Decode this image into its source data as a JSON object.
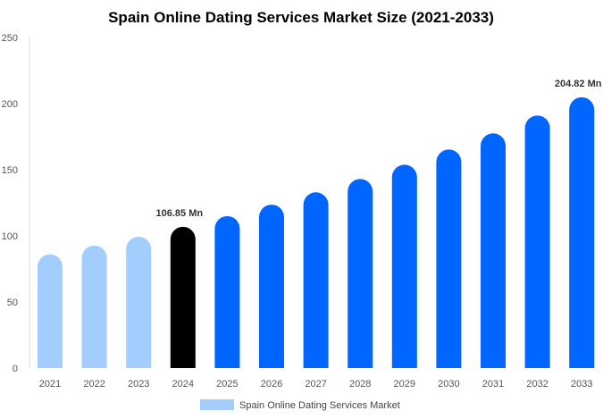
{
  "chart_data": {
    "type": "bar",
    "title": "Spain Online Dating Services Market Size (2021-2033)",
    "xlabel": "",
    "ylabel": "",
    "categories": [
      "2021",
      "2022",
      "2023",
      "2024",
      "2025",
      "2026",
      "2027",
      "2028",
      "2029",
      "2030",
      "2031",
      "2032",
      "2033"
    ],
    "series": [
      {
        "name": "Spain Online Dating Services Market",
        "values": [
          86,
          92.6,
          99.3,
          106.85,
          114.9,
          123.6,
          132.9,
          143,
          153.8,
          165.3,
          177.5,
          191,
          204.82
        ]
      }
    ],
    "ylim": [
      0,
      250
    ],
    "yticks": [
      0,
      50,
      100,
      150,
      200,
      250
    ],
    "data_labels": [
      {
        "category": "2024",
        "text": "106.85 Mn"
      },
      {
        "category": "2033",
        "text": "204.82 Mn"
      }
    ],
    "colors": {
      "historical": "#a3cdfd",
      "base_year": "#000000",
      "forecast": "#0066ff"
    },
    "historical_categories": [
      "2021",
      "2022",
      "2023"
    ],
    "base_year": "2024",
    "grid": false,
    "legend_position": "bottom"
  }
}
